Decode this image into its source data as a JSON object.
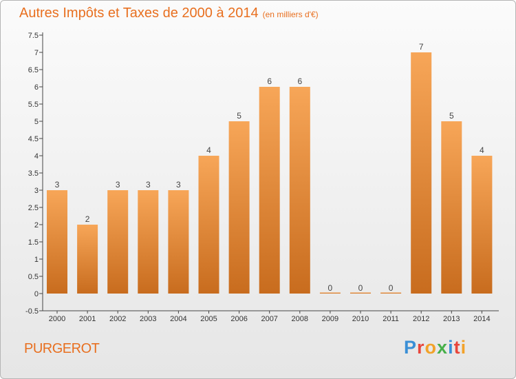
{
  "title": "Autres Impôts et Taxes de 2000 à 2014",
  "unit_note": "(en milliers d'€)",
  "commune": "PURGEROT",
  "logo": {
    "letters": [
      "P",
      "r",
      "o",
      "x",
      "i",
      "t",
      "i"
    ],
    "colors": [
      "#3a8fd6",
      "#e8463c",
      "#f2a22a",
      "#47b04a",
      "#3a8fd6",
      "#e8463c",
      "#f2a22a"
    ]
  },
  "colors": {
    "title": "#e86f1f",
    "bar_light": "#f7a658",
    "bar_dark": "#c86c1e"
  },
  "chart_data": {
    "type": "bar",
    "title": "Autres Impôts et Taxes de 2000 à 2014",
    "categories": [
      "2000",
      "2001",
      "2002",
      "2003",
      "2004",
      "2005",
      "2006",
      "2007",
      "2008",
      "2009",
      "2010",
      "2011",
      "2012",
      "2013",
      "2014"
    ],
    "values": [
      3,
      2,
      3,
      3,
      3,
      4,
      5,
      6,
      6,
      0,
      0,
      0,
      7,
      5,
      4
    ],
    "data_labels": [
      "3",
      "2",
      "3",
      "3",
      "3",
      "4",
      "5",
      "6",
      "6",
      "0",
      "0",
      "0",
      "7",
      "5",
      "4"
    ],
    "yticks": [
      "-0.5",
      "0",
      "0.5",
      "1",
      "1.5",
      "2",
      "2.5",
      "3",
      "3.5",
      "4",
      "4.5",
      "5",
      "5.5",
      "6",
      "6.5",
      "7",
      "7.5"
    ],
    "ylim": [
      -0.5,
      7.5
    ],
    "grid": false
  }
}
